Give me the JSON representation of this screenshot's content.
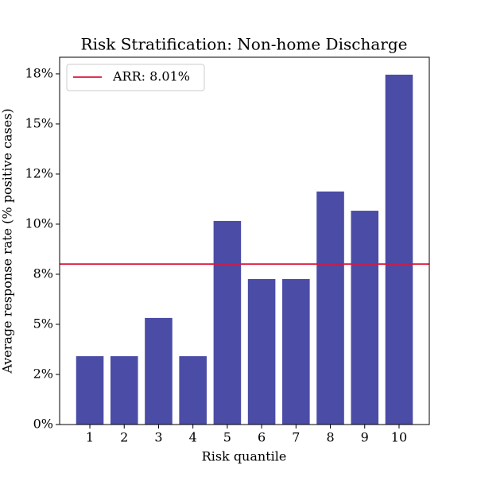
{
  "chart_data": {
    "type": "bar",
    "title": "Risk Stratification: Non-home Discharge",
    "x_label": "Risk quantile",
    "y_label": "Average response rate (% positive cases)",
    "categories": [
      "1",
      "2",
      "3",
      "4",
      "5",
      "6",
      "7",
      "8",
      "9",
      "10"
    ],
    "values": [
      3.41,
      3.41,
      5.32,
      3.41,
      10.16,
      7.26,
      7.26,
      11.63,
      10.67,
      17.46
    ],
    "color": "#4b4ca6",
    "reference_line": {
      "name": "ARR: 8.01%",
      "value": 8.01,
      "color": "#dc143c"
    },
    "ylim": [
      0,
      18.33
    ],
    "yticks": [
      {
        "value": 0,
        "label": "0%"
      },
      {
        "value": 2.5,
        "label": "2%"
      },
      {
        "value": 5,
        "label": "5%"
      },
      {
        "value": 7.5,
        "label": "8%"
      },
      {
        "value": 10,
        "label": "10%"
      },
      {
        "value": 12.5,
        "label": "12%"
      },
      {
        "value": 15,
        "label": "15%"
      },
      {
        "value": 17.5,
        "label": "18%"
      }
    ],
    "legend": "upper left"
  }
}
